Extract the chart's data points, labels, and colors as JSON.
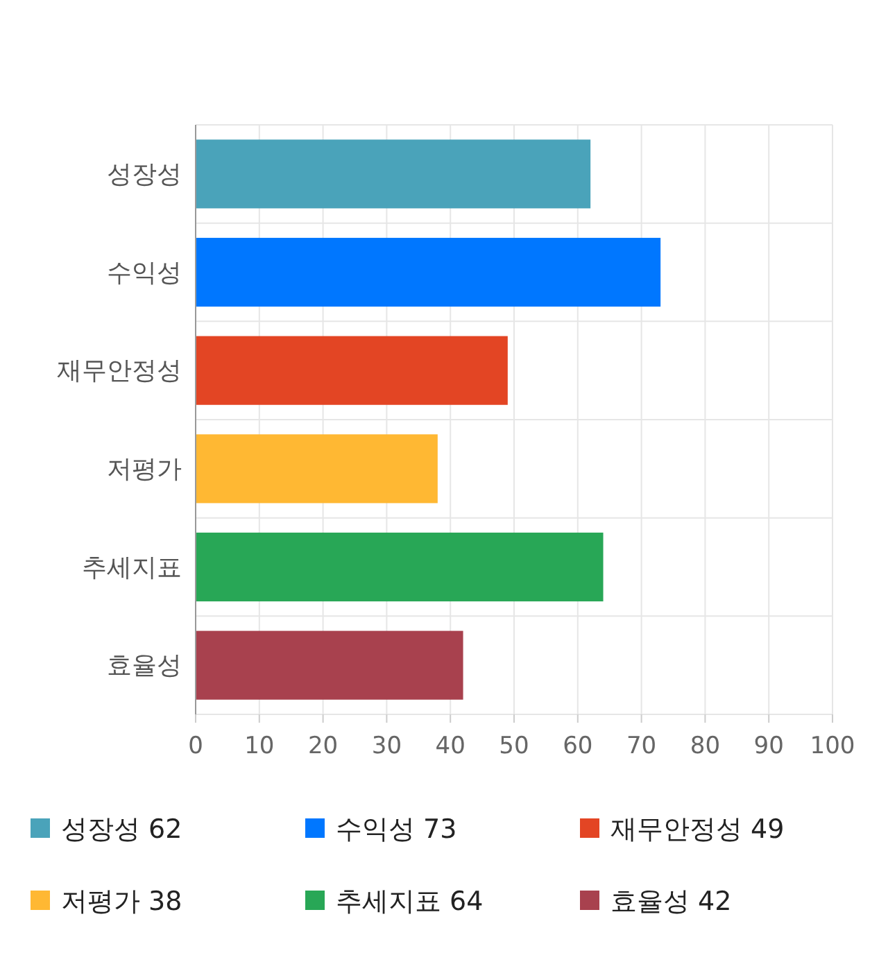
{
  "chart_data": {
    "type": "bar",
    "orientation": "horizontal",
    "stacked": true,
    "categories": [
      "성장성",
      "수익성",
      "재무안정성",
      "저평가",
      "추세지표",
      "효율성"
    ],
    "series": [
      {
        "name": "성장성 62",
        "color": "#4aa3ba",
        "values": [
          62,
          null,
          null,
          null,
          null,
          null
        ]
      },
      {
        "name": "수익성 73",
        "color": "#0077ff",
        "values": [
          null,
          73,
          null,
          null,
          null,
          null
        ]
      },
      {
        "name": "재무안정성 49",
        "color": "#e34524",
        "values": [
          null,
          null,
          49,
          null,
          null,
          null
        ]
      },
      {
        "name": "저평가 38",
        "color": "#ffb833",
        "values": [
          null,
          null,
          null,
          38,
          null,
          null
        ]
      },
      {
        "name": "추세지표 64",
        "color": "#28a756",
        "values": [
          null,
          null,
          null,
          null,
          64,
          null
        ]
      },
      {
        "name": "효율성 42",
        "color": "#a8414e",
        "values": [
          null,
          null,
          null,
          null,
          null,
          42
        ]
      }
    ],
    "xlim": [
      0,
      100
    ],
    "xticks": [
      0,
      10,
      20,
      30,
      40,
      50,
      60,
      70,
      80,
      90,
      100
    ],
    "grid": true,
    "legend": "bottom"
  }
}
